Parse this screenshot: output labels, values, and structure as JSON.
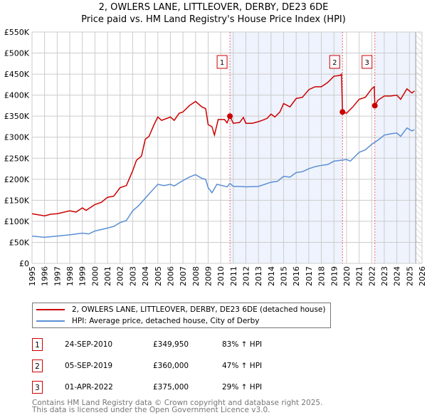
{
  "chart_data": {
    "type": "line",
    "title": "2, OWLERS LANE, LITTLEOVER, DERBY, DE23 6DE",
    "subtitle": "Price paid vs. HM Land Registry's House Price Index (HPI)",
    "xlim": [
      1995,
      2026
    ],
    "ylim": [
      0,
      550000
    ],
    "x_ticks": [
      "1995",
      "1996",
      "1997",
      "1998",
      "1999",
      "2000",
      "2001",
      "2002",
      "2003",
      "2004",
      "2005",
      "2006",
      "2007",
      "2008",
      "2009",
      "2010",
      "2011",
      "2012",
      "2013",
      "2014",
      "2015",
      "2016",
      "2017",
      "2018",
      "2019",
      "2020",
      "2021",
      "2022",
      "2023",
      "2024",
      "2025",
      "2026"
    ],
    "y_ticks": [
      {
        "v": 0,
        "label": "£0"
      },
      {
        "v": 50000,
        "label": "£50K"
      },
      {
        "v": 100000,
        "label": "£100K"
      },
      {
        "v": 150000,
        "label": "£150K"
      },
      {
        "v": 200000,
        "label": "£200K"
      },
      {
        "v": 250000,
        "label": "£250K"
      },
      {
        "v": 300000,
        "label": "£300K"
      },
      {
        "v": 350000,
        "label": "£350K"
      },
      {
        "v": 400000,
        "label": "£400K"
      },
      {
        "v": 450000,
        "label": "£450K"
      },
      {
        "v": 500000,
        "label": "£500K"
      },
      {
        "v": 550000,
        "label": "£550K"
      }
    ],
    "grid": true,
    "shaded_ranges": [
      [
        2010.73,
        2019.68
      ],
      [
        2022.25,
        2025.5
      ]
    ],
    "forecast_from": 2025.5,
    "series": [
      {
        "name": "2, OWLERS LANE, LITTLEOVER, DERBY, DE23 6DE (detached house)",
        "color": "#cc0000",
        "points": [
          [
            1995,
            118
          ],
          [
            1996,
            113
          ],
          [
            1996.5,
            117
          ],
          [
            1997,
            118
          ],
          [
            1998,
            125
          ],
          [
            1998.5,
            122
          ],
          [
            1999,
            132
          ],
          [
            1999.3,
            126
          ],
          [
            2000,
            140
          ],
          [
            2000.5,
            145
          ],
          [
            2001,
            157
          ],
          [
            2001.5,
            160
          ],
          [
            2002,
            180
          ],
          [
            2002.5,
            185
          ],
          [
            2003,
            220
          ],
          [
            2003.3,
            245
          ],
          [
            2003.7,
            255
          ],
          [
            2004,
            295
          ],
          [
            2004.3,
            302
          ],
          [
            2004.7,
            330
          ],
          [
            2005,
            348
          ],
          [
            2005.3,
            340
          ],
          [
            2006,
            348
          ],
          [
            2006.3,
            340
          ],
          [
            2006.7,
            357
          ],
          [
            2007,
            360
          ],
          [
            2007.5,
            375
          ],
          [
            2008,
            385
          ],
          [
            2008.5,
            372
          ],
          [
            2008.8,
            368
          ],
          [
            2009,
            330
          ],
          [
            2009.3,
            325
          ],
          [
            2009.5,
            305
          ],
          [
            2009.8,
            342
          ],
          [
            2010.3,
            342
          ],
          [
            2010.5,
            334
          ],
          [
            2010.73,
            350
          ],
          [
            2011,
            333
          ],
          [
            2011.5,
            335
          ],
          [
            2011.8,
            347
          ],
          [
            2012,
            333
          ],
          [
            2012.5,
            333
          ],
          [
            2013,
            337
          ],
          [
            2013.3,
            340
          ],
          [
            2013.7,
            345
          ],
          [
            2014,
            355
          ],
          [
            2014.3,
            348
          ],
          [
            2014.7,
            360
          ],
          [
            2015,
            380
          ],
          [
            2015.5,
            372
          ],
          [
            2016,
            392
          ],
          [
            2016.5,
            395
          ],
          [
            2017,
            413
          ],
          [
            2017.5,
            420
          ],
          [
            2018,
            420
          ],
          [
            2018.5,
            430
          ],
          [
            2019,
            445
          ],
          [
            2019.5,
            447
          ],
          [
            2019.6,
            450
          ],
          [
            2019.68,
            360
          ],
          [
            2020,
            357
          ],
          [
            2020.5,
            372
          ],
          [
            2021,
            390
          ],
          [
            2021.5,
            395
          ],
          [
            2022,
            415
          ],
          [
            2022.2,
            420
          ],
          [
            2022.25,
            375
          ],
          [
            2022.5,
            388
          ],
          [
            2023,
            398
          ],
          [
            2023.5,
            398
          ],
          [
            2024,
            400
          ],
          [
            2024.3,
            390
          ],
          [
            2024.8,
            415
          ],
          [
            2025.2,
            405
          ],
          [
            2025.4,
            410
          ]
        ]
      },
      {
        "name": "HPI: Average price, detached house, City of Derby",
        "color": "#5b8fd4",
        "points": [
          [
            1995,
            65
          ],
          [
            1996,
            62
          ],
          [
            1997,
            65
          ],
          [
            1998,
            68
          ],
          [
            1999,
            72
          ],
          [
            1999.5,
            70
          ],
          [
            2000,
            77
          ],
          [
            2001,
            84
          ],
          [
            2001.5,
            88
          ],
          [
            2002,
            97
          ],
          [
            2002.5,
            102
          ],
          [
            2003,
            125
          ],
          [
            2003.5,
            138
          ],
          [
            2004,
            155
          ],
          [
            2004.3,
            165
          ],
          [
            2005,
            188
          ],
          [
            2005.5,
            185
          ],
          [
            2006,
            188
          ],
          [
            2006.3,
            184
          ],
          [
            2007,
            197
          ],
          [
            2007.5,
            205
          ],
          [
            2008,
            211
          ],
          [
            2008.5,
            202
          ],
          [
            2008.8,
            200
          ],
          [
            2009,
            180
          ],
          [
            2009.3,
            168
          ],
          [
            2009.7,
            188
          ],
          [
            2010.5,
            182
          ],
          [
            2010.73,
            190
          ],
          [
            2011,
            183
          ],
          [
            2011.5,
            183
          ],
          [
            2012,
            182
          ],
          [
            2013,
            183
          ],
          [
            2014,
            193
          ],
          [
            2014.5,
            195
          ],
          [
            2015,
            207
          ],
          [
            2015.5,
            205
          ],
          [
            2016,
            216
          ],
          [
            2016.5,
            218
          ],
          [
            2017,
            225
          ],
          [
            2017.5,
            230
          ],
          [
            2018,
            233
          ],
          [
            2018.5,
            235
          ],
          [
            2019,
            243
          ],
          [
            2019.5,
            245
          ],
          [
            2020,
            247
          ],
          [
            2020.3,
            243
          ],
          [
            2021,
            264
          ],
          [
            2021.5,
            270
          ],
          [
            2022,
            283
          ],
          [
            2022.5,
            293
          ],
          [
            2023,
            305
          ],
          [
            2023.5,
            308
          ],
          [
            2024,
            310
          ],
          [
            2024.3,
            302
          ],
          [
            2024.8,
            322
          ],
          [
            2025.2,
            315
          ],
          [
            2025.4,
            318
          ]
        ]
      }
    ],
    "sales": [
      {
        "label": "1",
        "x": 2010.73,
        "value": 349950,
        "date": "24-SEP-2010",
        "price": "£349,950",
        "hpi": "83% ↑ HPI"
      },
      {
        "label": "2",
        "x": 2019.68,
        "value": 360000,
        "date": "05-SEP-2019",
        "price": "£360,000",
        "hpi": "47% ↑ HPI"
      },
      {
        "label": "3",
        "x": 2022.25,
        "value": 375000,
        "date": "01-APR-2022",
        "price": "£375,000",
        "hpi": "29% ↑ HPI"
      }
    ]
  },
  "footer": {
    "line1": "Contains HM Land Registry data © Crown copyright and database right 2025.",
    "line2": "This data is licensed under the Open Government Licence v3.0."
  }
}
